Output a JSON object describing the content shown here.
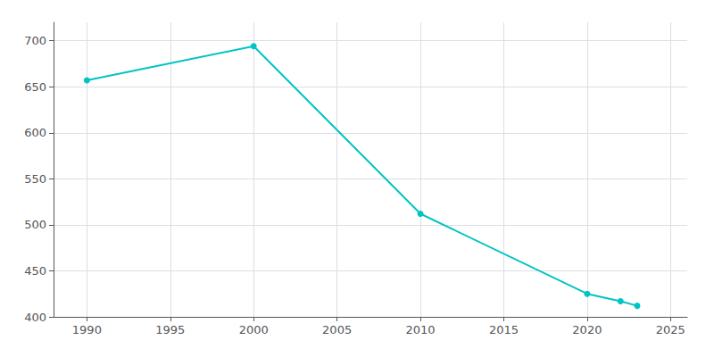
{
  "chart_data": {
    "type": "line",
    "x": [
      1990,
      2000,
      2010,
      2020,
      2022,
      2023
    ],
    "values": [
      657,
      694,
      512,
      425,
      417,
      412
    ],
    "color": "#00C4C4",
    "marker": "circle",
    "xlim": [
      1988,
      2026
    ],
    "ylim": [
      400,
      720
    ],
    "xticks": [
      1990,
      1995,
      2000,
      2005,
      2010,
      2015,
      2020,
      2025
    ],
    "yticks": [
      400,
      450,
      500,
      550,
      600,
      650,
      700
    ],
    "grid": true
  }
}
